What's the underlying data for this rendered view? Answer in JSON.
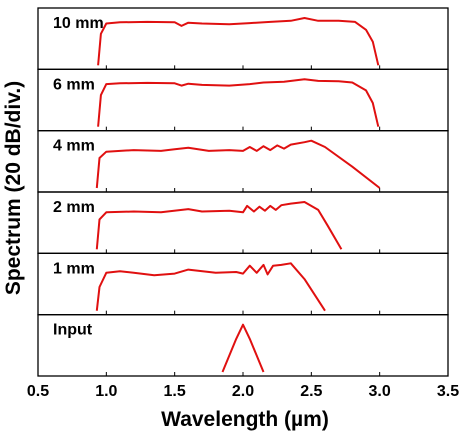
{
  "chart_data": {
    "type": "line",
    "ylabel": "Spectrum (20 dB/div.)",
    "xlabel": "Wavelength (µm)",
    "xlim": [
      0.5,
      3.5
    ],
    "x_ticks": [
      "0.5",
      "1.0",
      "1.5",
      "2.0",
      "2.5",
      "3.0",
      "3.5"
    ],
    "tick_values": [
      0.5,
      1.0,
      1.5,
      2.0,
      2.5,
      3.0,
      3.5
    ],
    "ylim_db": [
      -60,
      0
    ],
    "color": "#e01010",
    "grid": false,
    "panels": [
      {
        "label": "10 mm",
        "x": [
          0.94,
          0.96,
          1.0,
          1.1,
          1.3,
          1.5,
          1.55,
          1.6,
          1.7,
          1.9,
          2.05,
          2.2,
          2.35,
          2.45,
          2.55,
          2.7,
          2.82,
          2.9,
          2.95,
          2.99
        ],
        "y": [
          -60,
          -20,
          -7,
          -5.5,
          -5,
          -5.5,
          -10,
          -6,
          -7,
          -8,
          -6.5,
          -5,
          -3.5,
          0,
          -3.5,
          -3.5,
          -5,
          -15,
          -30,
          -60
        ]
      },
      {
        "label": "6 mm",
        "x": [
          0.94,
          0.96,
          1.0,
          1.1,
          1.3,
          1.5,
          1.55,
          1.6,
          1.7,
          1.9,
          2.05,
          2.15,
          2.3,
          2.45,
          2.55,
          2.7,
          2.8,
          2.9,
          2.95,
          2.99
        ],
        "y": [
          -60,
          -20,
          -6,
          -5,
          -4.5,
          -5,
          -8,
          -5.5,
          -7,
          -8,
          -6,
          -4,
          -3,
          0,
          -2,
          -2.5,
          -4,
          -14,
          -30,
          -60
        ]
      },
      {
        "label": "4 mm",
        "x": [
          0.93,
          0.95,
          1.0,
          1.2,
          1.4,
          1.5,
          1.6,
          1.75,
          1.9,
          2.0,
          2.05,
          2.1,
          2.15,
          2.2,
          2.25,
          2.3,
          2.35,
          2.45,
          2.5,
          2.6,
          2.8,
          3.0
        ],
        "y": [
          -60,
          -22,
          -14,
          -12,
          -13,
          -11,
          -9,
          -13,
          -12,
          -13,
          -8,
          -13,
          -7,
          -12,
          -6,
          -10,
          -5,
          -2,
          0,
          -8,
          -33,
          -60
        ]
      },
      {
        "label": "2 mm",
        "x": [
          0.93,
          0.95,
          1.0,
          1.2,
          1.4,
          1.6,
          1.7,
          1.9,
          2.0,
          2.03,
          2.08,
          2.12,
          2.16,
          2.2,
          2.24,
          2.28,
          2.35,
          2.45,
          2.55,
          2.62,
          2.72
        ],
        "y": [
          -60,
          -22,
          -13,
          -12,
          -13,
          -9,
          -12,
          -11,
          -13,
          -5,
          -12,
          -6,
          -11,
          -5,
          -10,
          -4,
          -2,
          0,
          -10,
          -30,
          -60
        ]
      },
      {
        "label": "1 mm",
        "x": [
          0.93,
          0.95,
          1.0,
          1.1,
          1.2,
          1.35,
          1.5,
          1.6,
          1.8,
          1.95,
          2.0,
          2.05,
          2.1,
          2.15,
          2.18,
          2.22,
          2.28,
          2.35,
          2.45,
          2.6
        ],
        "y": [
          -60,
          -30,
          -12,
          -10,
          -12,
          -15,
          -13,
          -8,
          -12,
          -11,
          -13,
          -3,
          -12,
          -2,
          -14,
          -3,
          -2,
          0,
          -20,
          -60
        ]
      },
      {
        "label": "Input",
        "x": [
          1.85,
          1.95,
          2.0,
          2.05,
          2.15
        ],
        "y": [
          -60,
          -18,
          0,
          -18,
          -60
        ]
      }
    ]
  }
}
